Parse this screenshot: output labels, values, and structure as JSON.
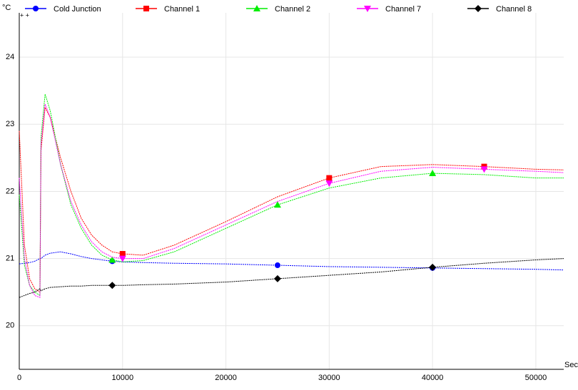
{
  "chart_data": {
    "type": "line",
    "y_label": "°C",
    "x_label": "Sec",
    "annotation": "+ +",
    "x": [
      0,
      500,
      1000,
      1500,
      2000,
      2100,
      2500,
      3000,
      4000,
      5000,
      6000,
      7000,
      8000,
      9000,
      10000,
      12000,
      15000,
      20000,
      25000,
      30000,
      35000,
      40000,
      45000,
      50000,
      52700
    ],
    "series": [
      {
        "name": "Cold Junction",
        "color": "#0000ff",
        "marker": "circle",
        "values": [
          20.92,
          20.93,
          20.94,
          20.96,
          21.0,
          21.0,
          21.05,
          21.08,
          21.1,
          21.07,
          21.03,
          21.0,
          20.98,
          20.96,
          20.95,
          20.94,
          20.93,
          20.92,
          20.9,
          20.88,
          20.87,
          20.86,
          20.85,
          20.84,
          20.83
        ]
      },
      {
        "name": "Channel 1",
        "color": "#ff0000",
        "marker": "square",
        "values": [
          22.9,
          21.2,
          20.7,
          20.55,
          20.5,
          22.6,
          23.25,
          23.1,
          22.5,
          22.0,
          21.6,
          21.35,
          21.2,
          21.1,
          21.07,
          21.05,
          21.2,
          21.55,
          21.92,
          22.2,
          22.37,
          22.4,
          22.37,
          22.33,
          22.32
        ]
      },
      {
        "name": "Channel 2",
        "color": "#00ee00",
        "marker": "triangle",
        "values": [
          21.95,
          20.9,
          20.6,
          20.5,
          20.45,
          22.8,
          23.45,
          23.2,
          22.4,
          21.8,
          21.45,
          21.2,
          21.05,
          20.98,
          20.95,
          20.97,
          21.1,
          21.45,
          21.8,
          22.05,
          22.2,
          22.27,
          22.25,
          22.2,
          22.2
        ]
      },
      {
        "name": "Channel 7",
        "color": "#ff00ff",
        "marker": "triangle-down",
        "values": [
          22.2,
          21.0,
          20.6,
          20.45,
          20.42,
          22.7,
          23.3,
          23.1,
          22.4,
          21.85,
          21.5,
          21.25,
          21.1,
          21.02,
          21.0,
          21.0,
          21.15,
          21.5,
          21.85,
          22.12,
          22.3,
          22.36,
          22.33,
          22.3,
          22.28
        ]
      },
      {
        "name": "Channel 8",
        "color": "#000000",
        "marker": "diamond",
        "values": [
          20.42,
          20.45,
          20.48,
          20.5,
          20.55,
          20.52,
          20.55,
          20.57,
          20.58,
          20.59,
          20.59,
          20.6,
          20.6,
          20.6,
          20.6,
          20.61,
          20.62,
          20.65,
          20.7,
          20.75,
          20.8,
          20.87,
          20.93,
          20.98,
          21.0
        ]
      }
    ],
    "xlim": [
      0,
      52700
    ],
    "xticks": [
      0,
      10000,
      20000,
      30000,
      40000,
      50000
    ],
    "ylim": [
      19.35,
      24.66
    ],
    "yticks": [
      20,
      21,
      22,
      23,
      24
    ],
    "grid": true
  }
}
